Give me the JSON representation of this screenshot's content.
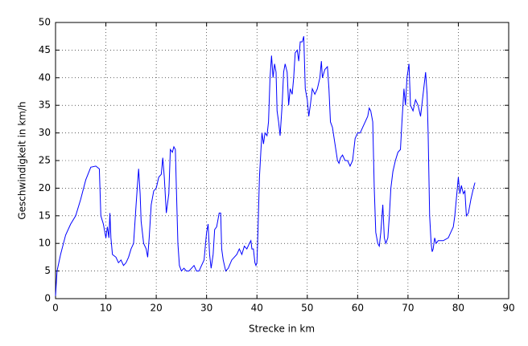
{
  "chart_data": {
    "type": "line",
    "xlabel": "Strecke in km",
    "ylabel": "Geschwindigkeit in km/h",
    "color": "#0000ff",
    "grid": true,
    "xlim": [
      0,
      90
    ],
    "xticks": [
      0,
      10,
      20,
      30,
      40,
      50,
      60,
      70,
      80,
      90
    ],
    "ylim": [
      0,
      50
    ],
    "yticks": [
      0,
      5,
      10,
      15,
      20,
      25,
      30,
      35,
      40,
      45,
      50
    ],
    "x": [
      0,
      0.3,
      1,
      2,
      3,
      4,
      5,
      6,
      7,
      8,
      8.7,
      9,
      9.5,
      10,
      10.3,
      10.6,
      10.8,
      11,
      11.3,
      12,
      12.5,
      13,
      13.5,
      14,
      14.5,
      15,
      15.5,
      16,
      16.3,
      16.5,
      16.8,
      17,
      17.5,
      18,
      18.3,
      18.6,
      19,
      19.5,
      20,
      20.5,
      21,
      21.3,
      21.6,
      22,
      22.5,
      22.8,
      23.2,
      23.5,
      23.8,
      24,
      24.3,
      24.6,
      25,
      25.5,
      26,
      26.5,
      27,
      27.5,
      28,
      28.5,
      29,
      29.5,
      30,
      30.3,
      30.6,
      30.9,
      31.3,
      31.6,
      32,
      32.5,
      32.8,
      33,
      33.3,
      33.8,
      34.3,
      35,
      35.5,
      36,
      36.5,
      37,
      37.5,
      38,
      38.5,
      38.8,
      39,
      39.3,
      39.6,
      39.8,
      40,
      40.2,
      40.5,
      40.8,
      41,
      41.3,
      41.6,
      42,
      42.3,
      42.6,
      42.9,
      43.2,
      43.5,
      43.8,
      44,
      44.3,
      44.6,
      45,
      45.3,
      45.6,
      46,
      46.3,
      46.6,
      47,
      47.3,
      47.6,
      48,
      48.3,
      48.6,
      49,
      49.3,
      49.6,
      50,
      50.3,
      50.6,
      51,
      51.5,
      52,
      52.5,
      52.8,
      53,
      53.5,
      54,
      54.3,
      54.6,
      55,
      55.5,
      56,
      56.3,
      56.6,
      57,
      57.5,
      58,
      58.5,
      59,
      59.5,
      60,
      60.5,
      61,
      61.5,
      62,
      62.3,
      62.6,
      63,
      63.3,
      63.6,
      64,
      64.3,
      64.6,
      65,
      65.3,
      65.6,
      66,
      66.3,
      66.6,
      67,
      67.5,
      68,
      68.5,
      68.8,
      69.2,
      69.5,
      69.8,
      70.2,
      70.5,
      71,
      71.5,
      72,
      72.5,
      73,
      73.5,
      73.8,
      74,
      74.3,
      74.6,
      74.8,
      75,
      75.3,
      75.6,
      76,
      77,
      78,
      78.5,
      79,
      79.3,
      79.6,
      79.8,
      80,
      80.3,
      80.6,
      81,
      81.3,
      81.6,
      82,
      82.5,
      83,
      83.3
    ],
    "values": [
      0.5,
      5,
      8,
      11.5,
      13.5,
      15,
      18,
      21.5,
      23.8,
      24,
      23.5,
      15,
      13.5,
      11,
      13,
      11,
      15.5,
      11,
      8,
      7.5,
      6.5,
      7,
      6,
      6.5,
      7.5,
      9,
      10,
      17,
      21,
      23.5,
      19,
      14,
      10,
      9,
      7.5,
      11,
      17,
      19.5,
      20,
      22,
      22.5,
      25.5,
      22,
      15.5,
      19,
      27,
      26.5,
      27.5,
      27,
      20,
      10,
      6,
      5,
      5.5,
      5,
      5,
      5.5,
      6,
      5,
      5,
      6,
      7,
      12,
      13.5,
      8,
      5.5,
      8,
      12.5,
      13,
      15.5,
      15.5,
      9,
      7,
      5,
      5.5,
      7,
      7.5,
      8,
      9,
      8,
      9.5,
      9,
      10,
      10.5,
      9,
      9,
      6.5,
      6,
      6.5,
      12,
      22,
      27,
      30,
      28,
      30,
      29.5,
      32,
      40,
      44,
      40,
      42.5,
      41,
      34,
      32,
      29.5,
      35,
      41,
      42.5,
      41,
      35,
      38,
      37,
      40,
      44.5,
      45,
      43,
      46.5,
      46.5,
      47.5,
      38,
      36,
      33,
      35,
      38,
      37,
      38,
      40,
      43,
      40,
      41.5,
      42,
      38,
      32,
      31,
      28,
      25,
      24.5,
      25.5,
      26,
      25,
      25,
      24,
      25,
      29,
      30,
      30,
      31,
      32,
      33,
      34.5,
      34,
      32,
      20,
      12,
      10,
      9.5,
      12,
      17,
      11,
      10,
      11,
      15,
      20,
      23,
      25,
      26.5,
      27,
      32,
      38,
      35,
      40,
      42.5,
      35,
      34,
      36,
      35,
      33,
      37,
      41,
      37,
      30,
      15,
      10,
      8.5,
      9,
      11,
      10,
      10.5,
      10.5,
      11,
      12,
      13,
      15,
      18,
      20,
      22,
      19,
      20.5,
      19,
      19.5,
      15,
      15.5,
      18,
      20,
      21
    ]
  }
}
